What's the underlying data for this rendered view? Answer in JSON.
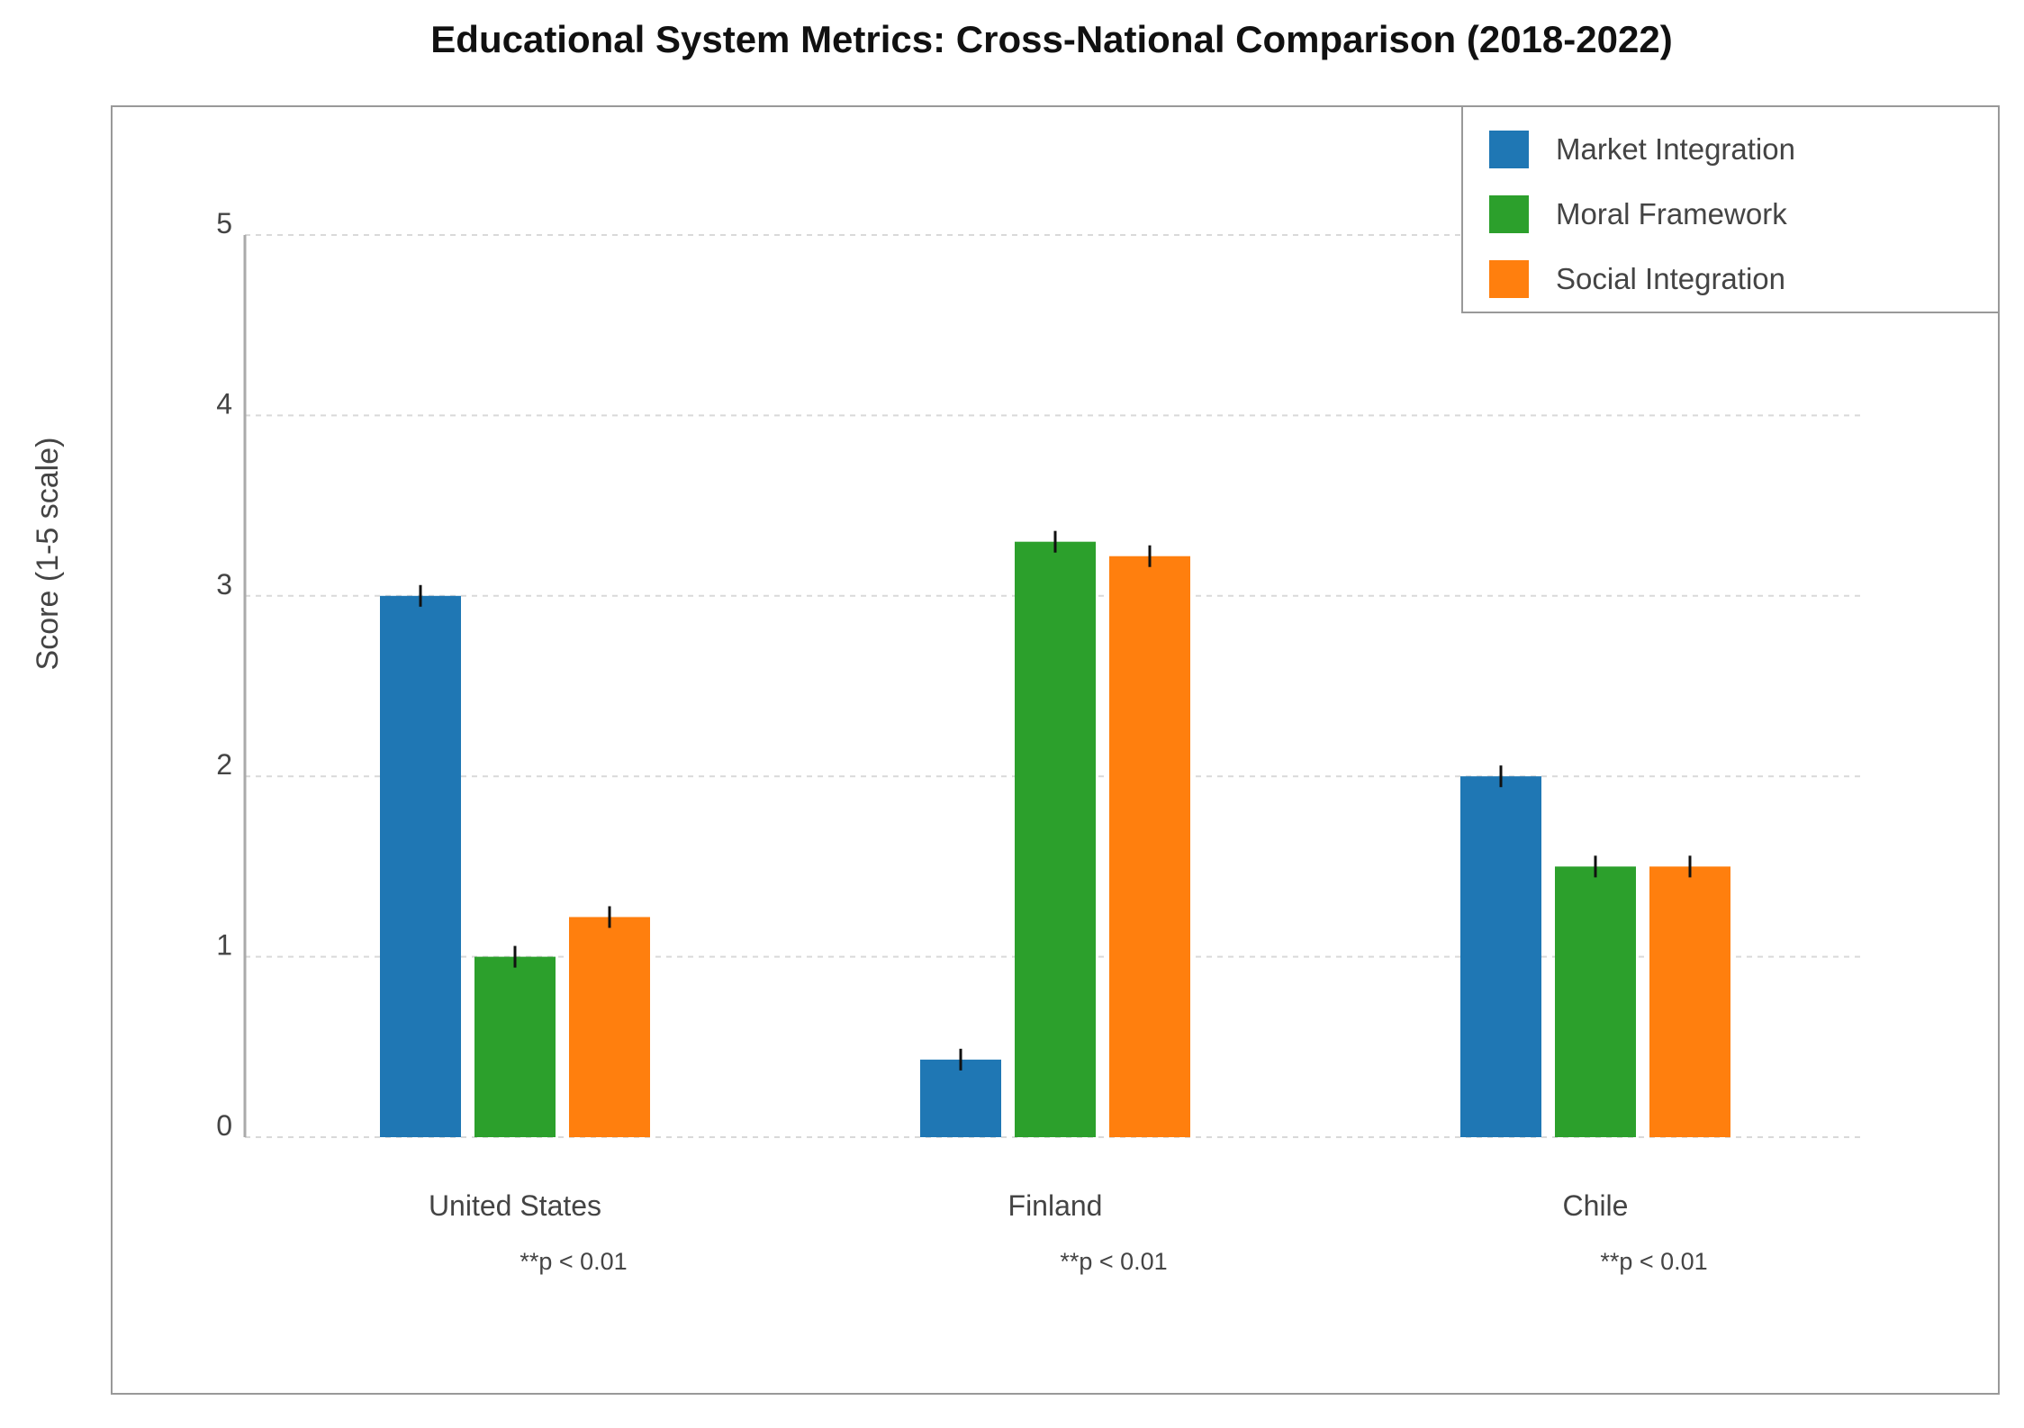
{
  "chart_data": {
    "type": "bar",
    "title": "Educational System Metrics: Cross-National Comparison (2018-2022)",
    "xlabel": "",
    "ylabel": "Score (1-5 scale)",
    "ylim": [
      0,
      5
    ],
    "yticks": [
      0,
      1,
      2,
      3,
      4,
      5
    ],
    "grid": true,
    "legend_position": "top-right",
    "categories": [
      "United States",
      "Finland",
      "Chile"
    ],
    "annotations": [
      "**p < 0.01",
      "**p < 0.01",
      "**p < 0.01"
    ],
    "series": [
      {
        "name": "Market Integration",
        "color": "#1f77b4",
        "values": [
          3.0,
          0.43,
          2.0
        ],
        "errors": [
          0.06,
          0.06,
          0.06
        ]
      },
      {
        "name": "Moral Framework",
        "color": "#2ca02c",
        "values": [
          1.0,
          3.3,
          1.5
        ],
        "errors": [
          0.06,
          0.06,
          0.06
        ]
      },
      {
        "name": "Social Integration",
        "color": "#ff7f0e",
        "values": [
          1.22,
          3.22,
          1.5
        ],
        "errors": [
          0.06,
          0.06,
          0.06
        ]
      }
    ]
  }
}
